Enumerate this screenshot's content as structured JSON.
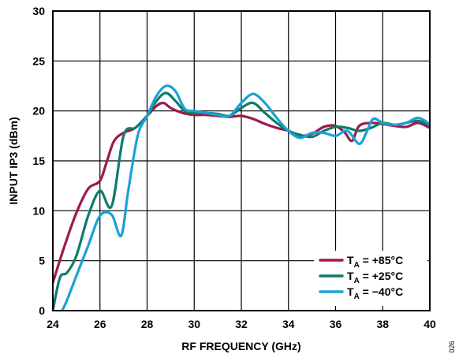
{
  "chart_data": {
    "type": "line",
    "xlabel": "RF FREQUENCY (GHz)",
    "ylabel": "INPUT IP3 (dBm)",
    "xlim": [
      24,
      40
    ],
    "ylim": [
      0,
      30
    ],
    "xticks": [
      24,
      26,
      28,
      30,
      32,
      34,
      36,
      38,
      40
    ],
    "yticks": [
      0,
      5,
      10,
      15,
      20,
      25,
      30
    ],
    "grid": true,
    "legend_position": "bottom-right",
    "series": [
      {
        "name_main": "T",
        "name_sub": "A",
        "name_rest": " = +85°C",
        "color": "#9b1c4a",
        "x": [
          24.0,
          24.5,
          25.0,
          25.5,
          26.0,
          26.3,
          26.6,
          27.0,
          27.5,
          28.0,
          28.4,
          28.7,
          29.0,
          29.5,
          30.0,
          30.5,
          31.0,
          31.5,
          32.0,
          32.5,
          33.0,
          33.5,
          34.0,
          34.5,
          35.0,
          35.5,
          36.0,
          36.4,
          36.7,
          37.0,
          37.5,
          38.0,
          38.5,
          39.0,
          39.5,
          40.0
        ],
        "y": [
          2.8,
          6.5,
          9.8,
          12.2,
          13.0,
          15.0,
          17.0,
          17.8,
          18.3,
          19.5,
          20.5,
          20.8,
          20.3,
          19.8,
          19.6,
          19.6,
          19.5,
          19.4,
          19.5,
          19.2,
          18.7,
          18.3,
          18.0,
          17.5,
          17.7,
          18.4,
          18.5,
          17.8,
          17.0,
          18.5,
          18.8,
          18.7,
          18.5,
          18.4,
          18.8,
          18.3
        ]
      },
      {
        "name_main": "T",
        "name_sub": "A",
        "name_rest": " = +25°C",
        "color": "#0f7b6c",
        "x": [
          24.0,
          24.3,
          24.6,
          25.0,
          25.5,
          26.0,
          26.5,
          27.0,
          27.5,
          28.0,
          28.4,
          28.8,
          29.2,
          29.6,
          30.0,
          30.5,
          31.0,
          31.5,
          32.0,
          32.5,
          33.0,
          33.5,
          34.0,
          34.5,
          35.0,
          35.5,
          36.0,
          36.5,
          37.0,
          37.5,
          38.0,
          38.5,
          39.0,
          39.5,
          40.0
        ],
        "y": [
          0.0,
          3.3,
          3.8,
          5.5,
          9.5,
          12.0,
          10.5,
          17.5,
          18.3,
          19.5,
          21.0,
          21.8,
          21.0,
          20.0,
          19.8,
          19.8,
          19.7,
          19.5,
          20.3,
          20.8,
          19.8,
          18.8,
          18.0,
          17.6,
          17.4,
          18.0,
          18.4,
          18.3,
          18.0,
          18.3,
          18.8,
          18.6,
          18.8,
          19.0,
          18.6
        ]
      },
      {
        "name_main": "T",
        "name_sub": "A",
        "name_rest": " = −40°C",
        "color": "#1aa2d4",
        "x": [
          24.0,
          24.5,
          25.0,
          25.5,
          26.0,
          26.5,
          26.9,
          27.2,
          27.6,
          28.0,
          28.4,
          28.8,
          29.2,
          29.6,
          30.0,
          30.5,
          31.0,
          31.5,
          32.0,
          32.5,
          33.0,
          33.5,
          34.0,
          34.5,
          35.0,
          35.5,
          36.0,
          36.5,
          37.0,
          37.3,
          37.6,
          38.0,
          38.5,
          39.0,
          39.5,
          40.0
        ],
        "y": [
          -1.5,
          0.5,
          3.5,
          6.5,
          9.5,
          9.6,
          7.5,
          12.0,
          17.5,
          19.5,
          21.5,
          22.5,
          22.0,
          20.2,
          20.0,
          19.8,
          19.6,
          19.5,
          20.8,
          21.7,
          20.8,
          19.3,
          18.0,
          17.3,
          17.8,
          17.8,
          17.5,
          18.0,
          16.7,
          17.8,
          19.2,
          18.8,
          18.6,
          18.8,
          19.3,
          18.7
        ]
      }
    ]
  },
  "side_note": "026"
}
